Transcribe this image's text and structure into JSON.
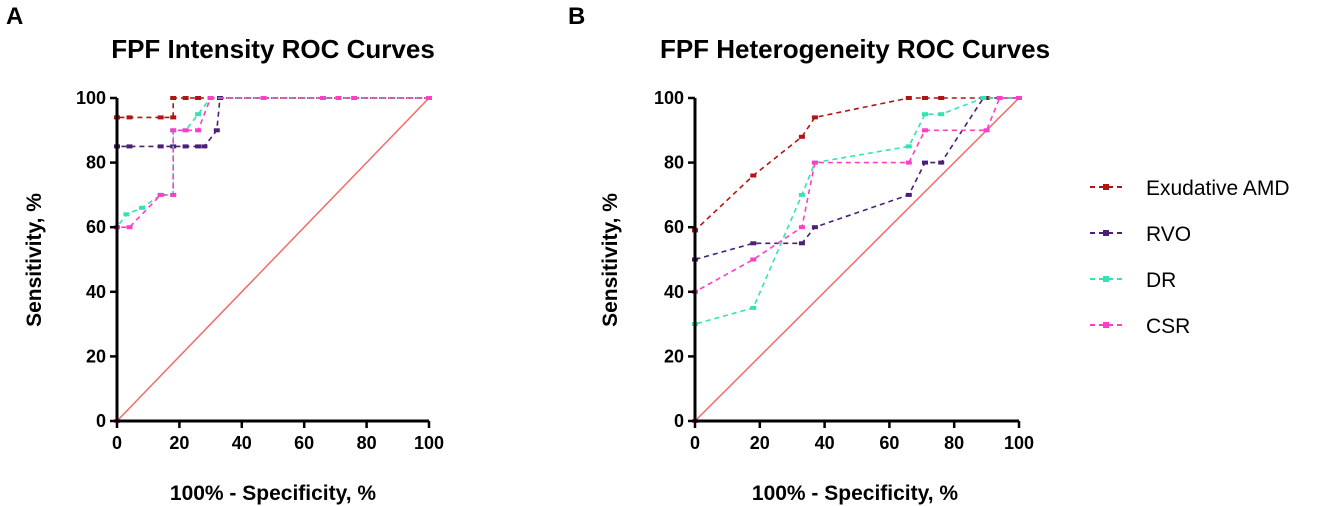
{
  "colors": {
    "Exudative AMD": "#b01515",
    "RVO": "#4a1f78",
    "DR": "#33e3b4",
    "CSR": "#ff3ec8",
    "reference": "#f26b6b"
  },
  "legend": [
    "Exudative AMD",
    "RVO",
    "DR",
    "CSR"
  ],
  "chart_data": [
    {
      "panel": "A",
      "type": "line",
      "title": "FPF Intensity ROC Curves",
      "xlabel": "100% - Specificity, %",
      "ylabel": "Sensitivity, %",
      "xlim": [
        0,
        100
      ],
      "ylim": [
        0,
        100
      ],
      "xticks": [
        "0",
        "20",
        "40",
        "60",
        "80",
        "100"
      ],
      "yticks": [
        "0",
        "20",
        "40",
        "60",
        "80",
        "100"
      ],
      "series": [
        {
          "name": "Exudative AMD",
          "points": [
            [
              0,
              0
            ],
            [
              0,
              94
            ],
            [
              4,
              94
            ],
            [
              14,
              94
            ],
            [
              18,
              94
            ],
            [
              18,
              100
            ],
            [
              22,
              100
            ],
            [
              26,
              100
            ],
            [
              30,
              100
            ],
            [
              100,
              100
            ]
          ]
        },
        {
          "name": "RVO",
          "points": [
            [
              0,
              0
            ],
            [
              0,
              85
            ],
            [
              4,
              85
            ],
            [
              14,
              85
            ],
            [
              18,
              85
            ],
            [
              22,
              85
            ],
            [
              26,
              85
            ],
            [
              28,
              85
            ],
            [
              32,
              90
            ],
            [
              33,
              100
            ],
            [
              100,
              100
            ]
          ]
        },
        {
          "name": "DR",
          "points": [
            [
              0,
              0
            ],
            [
              0,
              60
            ],
            [
              3,
              64
            ],
            [
              8,
              66
            ],
            [
              14,
              70
            ],
            [
              18,
              70
            ],
            [
              18,
              90
            ],
            [
              22,
              90
            ],
            [
              26,
              95
            ],
            [
              30,
              100
            ],
            [
              100,
              100
            ]
          ]
        },
        {
          "name": "CSR",
          "points": [
            [
              0,
              0
            ],
            [
              0,
              60
            ],
            [
              4,
              60
            ],
            [
              14,
              70
            ],
            [
              18,
              70
            ],
            [
              18,
              90
            ],
            [
              22,
              90
            ],
            [
              26,
              90
            ],
            [
              30,
              100
            ],
            [
              47,
              100
            ],
            [
              66,
              100
            ],
            [
              71,
              100
            ],
            [
              76,
              100
            ],
            [
              100,
              100
            ]
          ]
        }
      ]
    },
    {
      "panel": "B",
      "type": "line",
      "title": "FPF Heterogeneity ROC Curves",
      "xlabel": "100% - Specificity, %",
      "ylabel": "Sensitivity, %",
      "xlim": [
        0,
        100
      ],
      "ylim": [
        0,
        100
      ],
      "xticks": [
        "0",
        "20",
        "40",
        "60",
        "80",
        "100"
      ],
      "yticks": [
        "0",
        "20",
        "40",
        "60",
        "80",
        "100"
      ],
      "series": [
        {
          "name": "Exudative AMD",
          "points": [
            [
              0,
              0
            ],
            [
              0,
              59
            ],
            [
              18,
              76
            ],
            [
              33,
              88
            ],
            [
              37,
              94
            ],
            [
              66,
              100
            ],
            [
              71,
              100
            ],
            [
              76,
              100
            ],
            [
              90,
              100
            ],
            [
              100,
              100
            ]
          ]
        },
        {
          "name": "RVO",
          "points": [
            [
              0,
              0
            ],
            [
              0,
              50
            ],
            [
              18,
              55
            ],
            [
              33,
              55
            ],
            [
              37,
              60
            ],
            [
              66,
              70
            ],
            [
              71,
              80
            ],
            [
              76,
              80
            ],
            [
              89,
              100
            ],
            [
              100,
              100
            ]
          ]
        },
        {
          "name": "DR",
          "points": [
            [
              0,
              0
            ],
            [
              0,
              30
            ],
            [
              18,
              35
            ],
            [
              33,
              70
            ],
            [
              37,
              80
            ],
            [
              66,
              85
            ],
            [
              71,
              95
            ],
            [
              76,
              95
            ],
            [
              89,
              100
            ],
            [
              100,
              100
            ]
          ]
        },
        {
          "name": "CSR",
          "points": [
            [
              0,
              0
            ],
            [
              0,
              40
            ],
            [
              18,
              50
            ],
            [
              33,
              60
            ],
            [
              37,
              80
            ],
            [
              66,
              80
            ],
            [
              71,
              90
            ],
            [
              90,
              90
            ],
            [
              94,
              100
            ],
            [
              100,
              100
            ]
          ]
        }
      ]
    }
  ]
}
